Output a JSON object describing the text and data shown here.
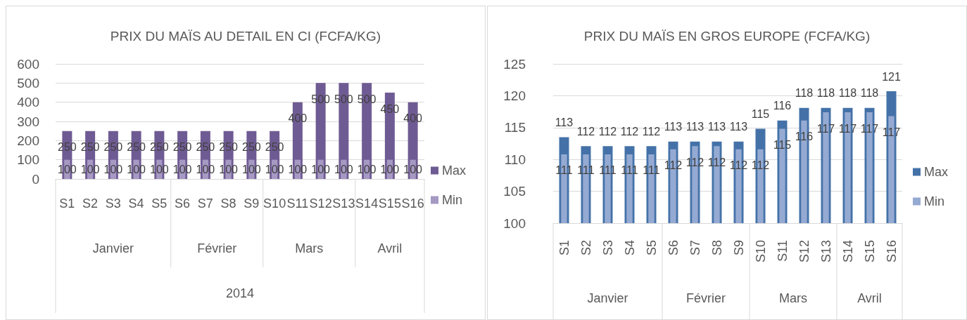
{
  "chart_data": [
    {
      "type": "bar",
      "title": "PRIX DU MAÏS AU DETAIL EN CI (FCFA/KG)",
      "categories": [
        "S1",
        "S2",
        "S3",
        "S4",
        "S5",
        "S6",
        "S7",
        "S8",
        "S9",
        "S10",
        "S11",
        "S12",
        "S13",
        "S14",
        "S15",
        "S16"
      ],
      "series": [
        {
          "name": "Max",
          "color": "#6f5b93",
          "values": [
            250,
            250,
            250,
            250,
            250,
            250,
            250,
            250,
            250,
            250,
            400,
            500,
            500,
            500,
            450,
            400
          ]
        },
        {
          "name": "Min",
          "color": "#a699c4",
          "values": [
            100,
            100,
            100,
            100,
            100,
            100,
            100,
            100,
            100,
            100,
            100,
            100,
            100,
            100,
            100,
            100
          ]
        }
      ],
      "ylim": [
        0,
        600
      ],
      "yticks": [
        0,
        100,
        200,
        300,
        400,
        500,
        600
      ],
      "grid": "y",
      "legend": "right",
      "data_labels": true,
      "annotations": [
        "Janvier",
        "Février",
        "Mars",
        "Avril",
        "2014"
      ]
    },
    {
      "type": "bar",
      "title": "PRIX DU MAÏS EN GROS EUROPE (FCFA/KG)",
      "categories": [
        "S1",
        "S2",
        "S3",
        "S4",
        "S5",
        "S6",
        "S7",
        "S8",
        "S9",
        "S10",
        "S11",
        "S12",
        "S13",
        "S14",
        "S15",
        "S16"
      ],
      "series": [
        {
          "name": "Max",
          "color": "#4472a8",
          "values": [
            113.5,
            112.1,
            112.1,
            112.1,
            112.1,
            112.8,
            112.8,
            112.8,
            112.8,
            114.8,
            116.1,
            118.1,
            118.1,
            118.1,
            118.1,
            120.7
          ],
          "value_labels": [
            "113",
            "112",
            "112",
            "112",
            "112",
            "113",
            "113",
            "113",
            "113",
            "115",
            "116",
            "118",
            "118",
            "118",
            "118",
            "121"
          ]
        },
        {
          "name": "Min",
          "color": "#95aad2",
          "values": [
            110.8,
            110.8,
            110.8,
            110.8,
            110.8,
            111.6,
            112.1,
            112.1,
            111.6,
            111.6,
            114.8,
            116.1,
            117.4,
            117.4,
            117.4,
            116.8
          ],
          "value_labels": [
            "111",
            "111",
            "111",
            "111",
            "111",
            "112",
            "112",
            "112",
            "112",
            "112",
            "115",
            "116",
            "117",
            "117",
            "117",
            "117"
          ]
        }
      ],
      "ylim": [
        100,
        125
      ],
      "yticks": [
        100,
        105,
        110,
        115,
        120,
        125
      ],
      "grid": "y",
      "legend": "right",
      "annotations": [
        "Janvier",
        "Février",
        "Mars",
        "Avril"
      ]
    }
  ]
}
